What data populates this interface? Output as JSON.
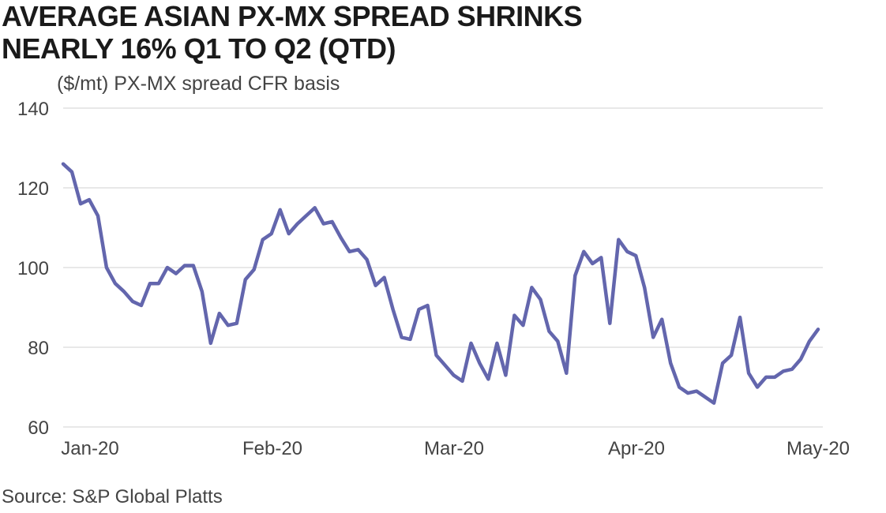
{
  "title_lines": [
    "AVERAGE ASIAN PX-MX SPREAD SHRINKS",
    "NEARLY 16% Q1 TO Q2 (QTD)"
  ],
  "source": "Source: S&P Global Platts",
  "colors": {
    "line": "#6366ad",
    "grid": "#d9d9d9",
    "text": "#444444"
  },
  "chart_data": {
    "type": "line",
    "title": "AVERAGE ASIAN PX-MX SPREAD SHRINKS NEARLY 16% Q1 TO Q2 (QTD)",
    "ylabel": "($/mt) PX-MX spread CFR basis",
    "xlabel": "",
    "ylim": [
      60,
      140
    ],
    "y_ticks": [
      60,
      80,
      100,
      120,
      140
    ],
    "x_tick_labels": [
      "Jan-20",
      "Feb-20",
      "Mar-20",
      "Apr-20",
      "May-20"
    ],
    "grid": "horizontal",
    "series": [
      {
        "values": [
          126,
          124,
          116,
          117,
          113,
          100,
          96,
          94,
          91.5,
          90.5,
          96,
          96,
          100,
          98.5,
          100.5,
          100.5,
          94,
          81,
          88.5,
          85.5,
          86,
          97,
          99.5,
          107,
          108.5,
          114.5,
          108.5,
          111,
          113,
          115,
          111,
          111.5,
          107.5,
          104,
          104.5,
          102,
          95.5,
          97.5,
          89.5,
          82.5,
          82,
          89.5,
          90.5,
          78,
          75.5,
          73,
          71.5,
          81,
          76,
          72,
          81,
          73,
          88,
          85.5,
          95,
          92,
          84,
          81.5,
          73.5,
          98,
          104,
          101,
          102.5,
          86,
          107,
          104,
          103,
          95,
          82.5,
          87,
          76,
          70,
          68.5,
          69,
          67.5,
          66,
          76,
          78,
          87.5,
          73.5,
          70,
          72.5,
          72.5,
          74,
          74.5,
          77,
          81.5,
          84.5
        ]
      }
    ]
  }
}
